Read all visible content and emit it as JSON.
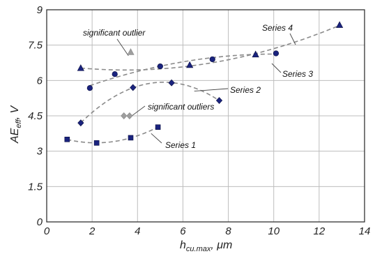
{
  "chart_data": {
    "type": "scatter",
    "xlabel_main": "h",
    "xlabel_sub": "cu.max",
    "xlabel_unit": ", μm",
    "ylabel_main": "AE",
    "ylabel_sub": "eff",
    "ylabel_unit": ", V",
    "xlim": [
      0,
      14
    ],
    "ylim": [
      0,
      9
    ],
    "x_ticks": [
      "0",
      "2",
      "4",
      "6",
      "8",
      "10",
      "12",
      "14"
    ],
    "y_ticks": [
      "0",
      "1.5",
      "3",
      "4.5",
      "6",
      "7.5",
      "9"
    ],
    "grid": true,
    "series": [
      {
        "name": "Series 1",
        "marker": "square",
        "color": "#1a237e",
        "x": [
          0.9,
          2.2,
          3.7,
          4.9
        ],
        "y": [
          3.5,
          3.35,
          3.57,
          4.02
        ]
      },
      {
        "name": "Series 2",
        "marker": "diamond",
        "color": "#1a237e",
        "x": [
          1.5,
          3.8,
          5.5,
          7.6
        ],
        "y": [
          4.2,
          5.7,
          5.9,
          5.15
        ]
      },
      {
        "name": "Series 3",
        "marker": "circle",
        "color": "#1a237e",
        "x": [
          1.9,
          3.0,
          5.0,
          7.3,
          10.1
        ],
        "y": [
          5.68,
          6.27,
          6.6,
          6.9,
          7.15
        ]
      },
      {
        "name": "Series 4",
        "marker": "triangle",
        "color": "#1a237e",
        "x": [
          1.5,
          6.3,
          9.2,
          12.9
        ],
        "y": [
          6.52,
          6.65,
          7.1,
          8.35
        ]
      }
    ],
    "outliers": [
      {
        "marker": "triangle",
        "color": "#9e9e9e",
        "x": 3.7,
        "y": 7.2
      },
      {
        "marker": "diamond",
        "color": "#9e9e9e",
        "x": 3.4,
        "y": 4.5
      },
      {
        "marker": "diamond",
        "color": "#9e9e9e",
        "x": 3.65,
        "y": 4.5
      }
    ],
    "annotations": {
      "series1": "Series 1",
      "series2": "Series 2",
      "series3": "Series 3",
      "series4": "Series 4",
      "outlier_single": "significant outlier",
      "outlier_multi": "significant outliers"
    }
  }
}
